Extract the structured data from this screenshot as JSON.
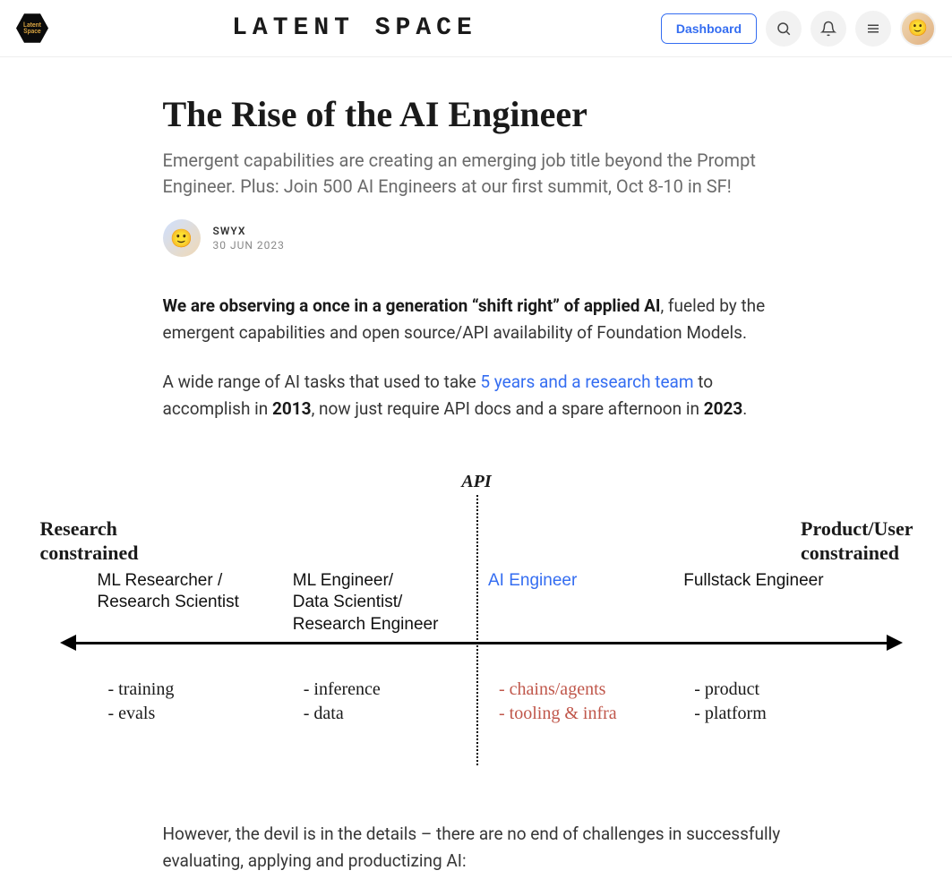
{
  "header": {
    "logo_text": "Latent\nSpace",
    "brand": "Latent Space",
    "dashboard_label": "Dashboard"
  },
  "article": {
    "title": "The Rise of the AI Engineer",
    "subtitle": "Emergent capabilities are creating an emerging job title beyond the Prompt Engineer. Plus: Join 500 AI Engineers at our first summit, Oct 8-10 in SF!",
    "author": "SWYX",
    "date": "30 JUN 2023",
    "para1_bold": "We are observing a once in a generation “shift right” of applied AI",
    "para1_rest": ", fueled by the emergent capabilities and open source/API availability of Foundation Models.",
    "para2_pre": "A wide range of AI tasks that used to take ",
    "para2_link": "5 years and a research team",
    "para2_mid": " to accomplish in ",
    "para2_year1": "2013",
    "para2_mid2": ", now just require API docs and a spare afternoon in ",
    "para2_year2": "2023",
    "para2_end": ".",
    "para3": "However, the devil is in the details – there are no end of challenges in successfully evaluating, applying and productizing AI:"
  },
  "diagram": {
    "type": "spectrum-infographic",
    "api_label": "API",
    "left_constraint_l1": "Research",
    "left_constraint_l2": "constrained",
    "right_constraint_l1": "Product/User",
    "right_constraint_l2": "constrained",
    "roles": [
      {
        "title": "ML Researcher /\nResearch Scientist",
        "color": "#111111"
      },
      {
        "title": "ML Engineer/\nData Scientist/\nResearch Engineer",
        "color": "#111111"
      },
      {
        "title": "AI Engineer",
        "color": "#346df1"
      },
      {
        "title": "Fullstack Engineer",
        "color": "#111111"
      }
    ],
    "tasks": [
      {
        "items": [
          "- training",
          "- evals"
        ],
        "color": "#000000"
      },
      {
        "items": [
          "- inference",
          "- data"
        ],
        "color": "#000000"
      },
      {
        "items": [
          "- chains/agents",
          "- tooling & infra"
        ],
        "color": "#c0574b"
      },
      {
        "items": [
          "- product",
          "- platform"
        ],
        "color": "#000000"
      }
    ],
    "role_label_fontsize": 19,
    "task_label_fontsize": 20,
    "constraint_label_fontsize": 22,
    "axis_color": "#000000",
    "background_color": "#ffffff"
  },
  "colors": {
    "link": "#346df1",
    "accent_red": "#c0574b",
    "text": "#1a1a1a",
    "muted": "#6b6b6b"
  }
}
